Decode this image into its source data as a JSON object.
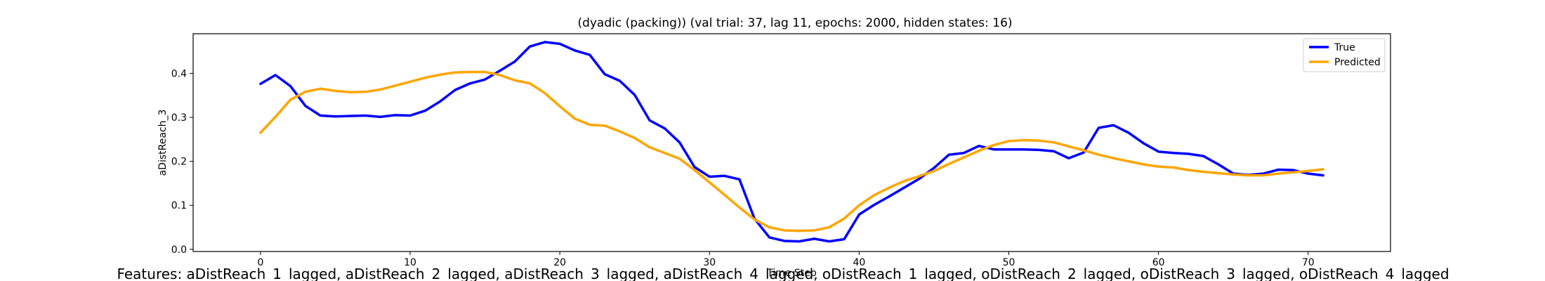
{
  "chart_data": {
    "type": "line",
    "title": "(dyadic (packing)) (val trial: 37, lag 11, epochs: 2000, hidden states: 16)",
    "xlabel": "Time Step",
    "ylabel": "aDistReach_3",
    "xlim": [
      -4.5,
      75.5
    ],
    "ylim": [
      -0.005,
      0.49
    ],
    "xticks": [
      0,
      10,
      20,
      30,
      40,
      50,
      60,
      70
    ],
    "yticks": [
      0.0,
      0.1,
      0.2,
      0.3,
      0.4
    ],
    "xtick_labels": [
      "0",
      "10",
      "20",
      "30",
      "40",
      "50",
      "60",
      "70"
    ],
    "ytick_labels": [
      "0.0",
      "0.1",
      "0.2",
      "0.3",
      "0.4"
    ],
    "grid": false,
    "legend_position": "top-right",
    "caption": "Features: aDistReach_1_lagged, aDistReach_2_lagged, aDistReach_3_lagged, aDistReach_4_lagged, oDistReach_1_lagged, oDistReach_2_lagged, oDistReach_3_lagged, oDistReach_4_lagged",
    "x": [
      0,
      1,
      2,
      3,
      4,
      5,
      6,
      7,
      8,
      9,
      10,
      11,
      12,
      13,
      14,
      15,
      16,
      17,
      18,
      19,
      20,
      21,
      22,
      23,
      24,
      25,
      26,
      27,
      28,
      29,
      30,
      31,
      32,
      33,
      34,
      35,
      36,
      37,
      38,
      39,
      40,
      41,
      42,
      43,
      44,
      45,
      46,
      47,
      48,
      49,
      50,
      51,
      52,
      53,
      54,
      55,
      56,
      57,
      58,
      59,
      60,
      61,
      62,
      63,
      64,
      65,
      66,
      67,
      68,
      69,
      70,
      71
    ],
    "series": [
      {
        "name": "True",
        "color": "#0000ff",
        "values": [
          0.376,
          0.396,
          0.371,
          0.326,
          0.304,
          0.302,
          0.303,
          0.304,
          0.301,
          0.305,
          0.304,
          0.315,
          0.336,
          0.362,
          0.377,
          0.386,
          0.406,
          0.427,
          0.461,
          0.471,
          0.467,
          0.452,
          0.442,
          0.398,
          0.383,
          0.351,
          0.293,
          0.275,
          0.243,
          0.187,
          0.165,
          0.167,
          0.159,
          0.07,
          0.027,
          0.019,
          0.018,
          0.024,
          0.018,
          0.023,
          0.079,
          0.101,
          0.12,
          0.14,
          0.16,
          0.185,
          0.215,
          0.219,
          0.235,
          0.227,
          0.227,
          0.227,
          0.226,
          0.223,
          0.207,
          0.22,
          0.276,
          0.282,
          0.265,
          0.241,
          0.222,
          0.219,
          0.217,
          0.212,
          0.193,
          0.172,
          0.169,
          0.172,
          0.181,
          0.18,
          0.172,
          0.168
        ]
      },
      {
        "name": "Predicted",
        "color": "#ffa500",
        "values": [
          0.265,
          0.301,
          0.34,
          0.358,
          0.365,
          0.36,
          0.357,
          0.358,
          0.363,
          0.372,
          0.381,
          0.39,
          0.397,
          0.402,
          0.403,
          0.403,
          0.396,
          0.384,
          0.377,
          0.355,
          0.325,
          0.297,
          0.283,
          0.281,
          0.268,
          0.253,
          0.232,
          0.219,
          0.206,
          0.18,
          0.152,
          0.124,
          0.095,
          0.068,
          0.05,
          0.043,
          0.042,
          0.043,
          0.05,
          0.07,
          0.1,
          0.123,
          0.14,
          0.155,
          0.166,
          0.178,
          0.194,
          0.209,
          0.224,
          0.237,
          0.246,
          0.248,
          0.247,
          0.243,
          0.234,
          0.225,
          0.215,
          0.207,
          0.2,
          0.193,
          0.188,
          0.186,
          0.18,
          0.176,
          0.173,
          0.17,
          0.168,
          0.168,
          0.172,
          0.175,
          0.178,
          0.182
        ]
      }
    ]
  }
}
